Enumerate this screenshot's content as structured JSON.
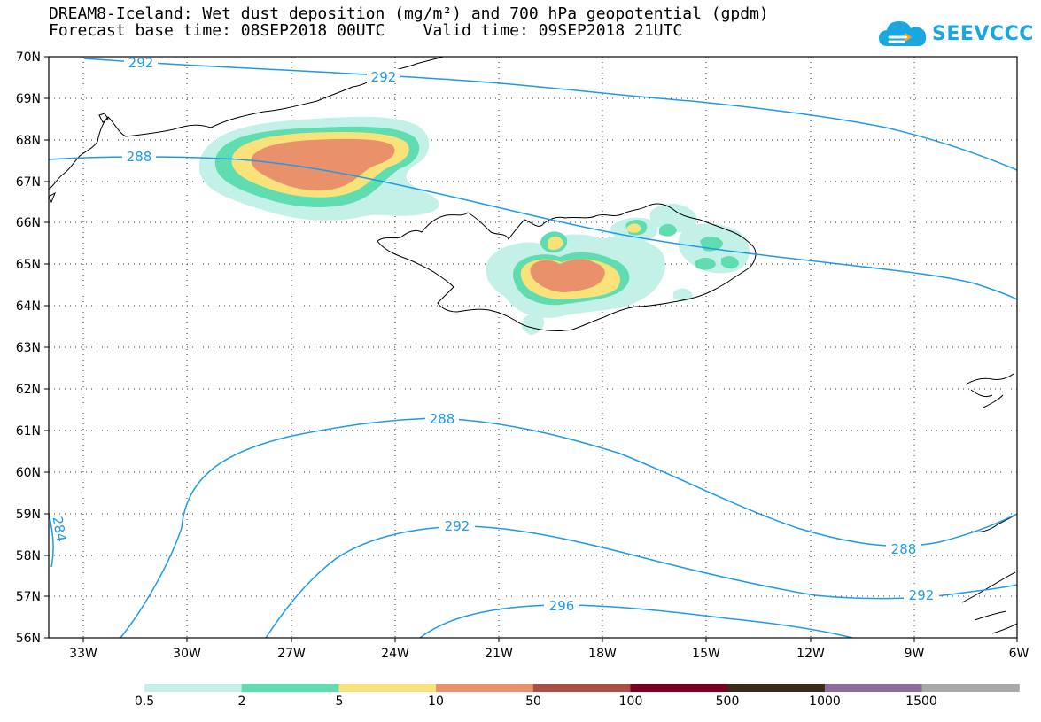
{
  "title": {
    "line1": "DREAM8-Iceland: Wet dust deposition (mg/m²) and 700 hPa geopotential (gpdm)",
    "line2": "Forecast base time: 08SEP2018 00UTC    Valid time: 09SEP2018 21UTC"
  },
  "logo": {
    "text": "SEEVCCC",
    "icon": "cloud-icon",
    "color": "#1aa6e0"
  },
  "map": {
    "lon_labels": [
      "33W",
      "30W",
      "27W",
      "24W",
      "21W",
      "18W",
      "15W",
      "12W",
      "9W",
      "6W"
    ],
    "lat_labels": [
      "70N",
      "69N",
      "68N",
      "67N",
      "66N",
      "65N",
      "64N",
      "63N",
      "62N",
      "61N",
      "60N",
      "59N",
      "58N",
      "57N",
      "56N"
    ],
    "contour_color": "#1e9be8",
    "contour_labels": {
      "north_292": "292",
      "north_292b": "292",
      "mid_288": "288",
      "south_288": "288",
      "se_288": "288",
      "s_292": "292",
      "se_292": "292",
      "s_296": "296",
      "w_284": "284"
    }
  },
  "colorbar": {
    "colors": [
      "#c3f0e7",
      "#5fdcb0",
      "#f9e27a",
      "#e9916a",
      "#aa4f46",
      "#7a0020",
      "#3a2a1a",
      "#8f6c9a",
      "#a8a8a8"
    ],
    "labels": [
      "0.5",
      "2",
      "5",
      "10",
      "50",
      "100",
      "500",
      "1000",
      "1500"
    ]
  }
}
